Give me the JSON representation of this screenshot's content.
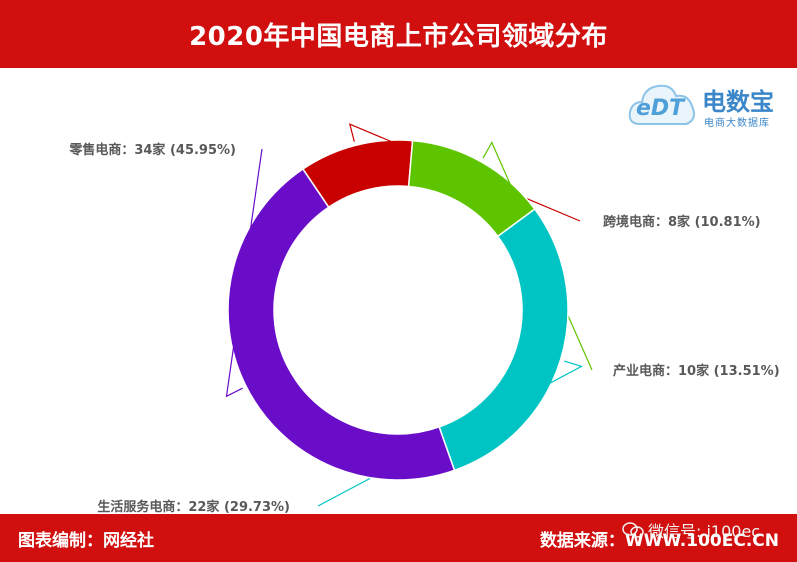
{
  "header": {
    "title": "2020年中国电商上市公司领域分布"
  },
  "logo": {
    "mark": "eDT",
    "brand": "电数宝",
    "tagline": "电商大数据库"
  },
  "footer": {
    "left": "图表编制：网经社",
    "right": "数据来源：WWW.100EC.CN",
    "wechat": "微信号: i100ec"
  },
  "chart_data": {
    "type": "pie",
    "donut": true,
    "categories": [
      "零售电商",
      "跨境电商",
      "产业电商",
      "生活服务电商"
    ],
    "values": [
      34,
      8,
      10,
      22
    ],
    "percents": [
      45.95,
      10.81,
      13.51,
      29.73
    ],
    "labels": [
      "零售电商：34家 (45.95%)",
      "跨境电商：8家 (10.81%)",
      "产业电商：10家 (13.51%)",
      "生活服务电商：22家 (29.73%)"
    ],
    "colors": [
      "#6a0dc8",
      "#c90000",
      "#5fc400",
      "#00c4c4"
    ],
    "legend": "none"
  }
}
